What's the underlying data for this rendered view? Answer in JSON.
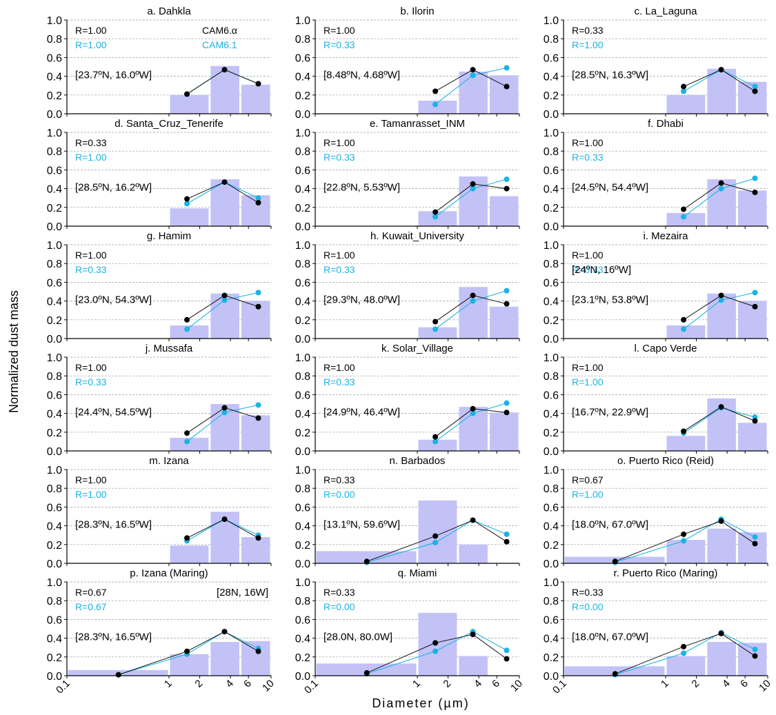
{
  "ylabel": "Normalized dust mass",
  "xlabel": "Diameter (µm)",
  "legend": {
    "black": "CAM6.α",
    "cyan": "CAM6.1"
  },
  "colors": {
    "bar": "#c3c2f7",
    "observed": "#111111",
    "cam61": "#1ab3e6"
  },
  "x_tick_labels": [
    "0.1",
    "1",
    "2",
    "4",
    "6",
    "10"
  ],
  "x_tick_values": [
    0.1,
    1,
    2,
    4,
    6,
    10
  ],
  "y_tick_labels": [
    "0.0",
    "0.2",
    "0.4",
    "0.6",
    "0.8",
    "1.0"
  ],
  "chart_data": [
    {
      "type": "bar",
      "title": "a. Dahkla",
      "xscale": "log",
      "xlim": [
        0.1,
        10
      ],
      "ylim": [
        0,
        1.0
      ],
      "r_black": "R=1.00",
      "r_cyan": "R=1.00",
      "coord": "[23.7ºN, 16.0ºW]",
      "bars": [
        {
          "x0": 1,
          "x1": 2.5,
          "value": 0.2
        },
        {
          "x0": 2.5,
          "x1": 5,
          "value": 0.51
        },
        {
          "x0": 5,
          "x1": 10,
          "value": 0.31
        }
      ],
      "series": [
        {
          "name": "CAM6.α",
          "x": [
            1.5,
            3.5,
            7.5
          ],
          "y": [
            0.21,
            0.47,
            0.32
          ]
        },
        {
          "name": "CAM6.1",
          "x": [
            1.5,
            3.5,
            7.5
          ],
          "y": [
            0.21,
            0.47,
            0.32
          ]
        }
      ]
    },
    {
      "type": "bar",
      "title": "b. Ilorin",
      "xscale": "log",
      "xlim": [
        0.1,
        10
      ],
      "ylim": [
        0,
        1.0
      ],
      "r_black": "R=1.00",
      "r_cyan": "R=0.33",
      "coord": "[8.48ºN, 4.68ºW]",
      "bars": [
        {
          "x0": 1,
          "x1": 2.5,
          "value": 0.14
        },
        {
          "x0": 2.5,
          "x1": 5,
          "value": 0.45
        },
        {
          "x0": 5,
          "x1": 10,
          "value": 0.41
        }
      ],
      "series": [
        {
          "name": "CAM6.α",
          "x": [
            1.5,
            3.5,
            7.5
          ],
          "y": [
            0.24,
            0.47,
            0.29
          ]
        },
        {
          "name": "CAM6.1",
          "x": [
            1.5,
            3.5,
            7.5
          ],
          "y": [
            0.1,
            0.41,
            0.49
          ]
        }
      ]
    },
    {
      "type": "bar",
      "title": "c. La_Laguna",
      "xscale": "log",
      "xlim": [
        0.1,
        10
      ],
      "ylim": [
        0,
        1.0
      ],
      "r_black": "R=0.33",
      "r_cyan": "R=1.00",
      "coord": "[28.5ºN, 16.3ºW]",
      "bars": [
        {
          "x0": 1,
          "x1": 2.5,
          "value": 0.2
        },
        {
          "x0": 2.5,
          "x1": 5,
          "value": 0.48
        },
        {
          "x0": 5,
          "x1": 10,
          "value": 0.34
        }
      ],
      "series": [
        {
          "name": "CAM6.α",
          "x": [
            1.5,
            3.5,
            7.5
          ],
          "y": [
            0.29,
            0.47,
            0.24
          ]
        },
        {
          "name": "CAM6.1",
          "x": [
            1.5,
            3.5,
            7.5
          ],
          "y": [
            0.24,
            0.47,
            0.29
          ]
        }
      ]
    },
    {
      "type": "bar",
      "title": "d. Santa_Cruz_Tenerife",
      "xscale": "log",
      "xlim": [
        0.1,
        10
      ],
      "ylim": [
        0,
        1.0
      ],
      "r_black": "R=0.33",
      "r_cyan": "R=1.00",
      "coord": "[28.5ºN, 16.2ºW]",
      "bars": [
        {
          "x0": 1,
          "x1": 2.5,
          "value": 0.19
        },
        {
          "x0": 2.5,
          "x1": 5,
          "value": 0.5
        },
        {
          "x0": 5,
          "x1": 10,
          "value": 0.33
        }
      ],
      "series": [
        {
          "name": "CAM6.α",
          "x": [
            1.5,
            3.5,
            7.5
          ],
          "y": [
            0.29,
            0.47,
            0.25
          ]
        },
        {
          "name": "CAM6.1",
          "x": [
            1.5,
            3.5,
            7.5
          ],
          "y": [
            0.24,
            0.47,
            0.3
          ]
        }
      ]
    },
    {
      "type": "bar",
      "title": "e. Tamanrasset_INM",
      "xscale": "log",
      "xlim": [
        0.1,
        10
      ],
      "ylim": [
        0,
        1.0
      ],
      "r_black": "R=1.00",
      "r_cyan": "R=0.33",
      "coord": "[22.8ºN, 5.53ºW]",
      "bars": [
        {
          "x0": 1,
          "x1": 2.5,
          "value": 0.16
        },
        {
          "x0": 2.5,
          "x1": 5,
          "value": 0.53
        },
        {
          "x0": 5,
          "x1": 10,
          "value": 0.32
        }
      ],
      "series": [
        {
          "name": "CAM6.α",
          "x": [
            1.5,
            3.5,
            7.5
          ],
          "y": [
            0.15,
            0.45,
            0.4
          ]
        },
        {
          "name": "CAM6.1",
          "x": [
            1.5,
            3.5,
            7.5
          ],
          "y": [
            0.1,
            0.4,
            0.5
          ]
        }
      ]
    },
    {
      "type": "bar",
      "title": "f. Dhabi",
      "xscale": "log",
      "xlim": [
        0.1,
        10
      ],
      "ylim": [
        0,
        1.0
      ],
      "r_black": "R=1.00",
      "r_cyan": "R=0.33",
      "coord": "[24.5ºN, 54.4ºW]",
      "bars": [
        {
          "x0": 1,
          "x1": 2.5,
          "value": 0.14
        },
        {
          "x0": 2.5,
          "x1": 5,
          "value": 0.5
        },
        {
          "x0": 5,
          "x1": 10,
          "value": 0.38
        }
      ],
      "series": [
        {
          "name": "CAM6.α",
          "x": [
            1.5,
            3.5,
            7.5
          ],
          "y": [
            0.18,
            0.46,
            0.36
          ]
        },
        {
          "name": "CAM6.1",
          "x": [
            1.5,
            3.5,
            7.5
          ],
          "y": [
            0.1,
            0.4,
            0.51
          ]
        }
      ]
    },
    {
      "type": "bar",
      "title": "g. Hamim",
      "xscale": "log",
      "xlim": [
        0.1,
        10
      ],
      "ylim": [
        0,
        1.0
      ],
      "r_black": "R=1.00",
      "r_cyan": "R=0.33",
      "coord": "[23.0ºN, 54.3ºW]",
      "bars": [
        {
          "x0": 1,
          "x1": 2.5,
          "value": 0.14
        },
        {
          "x0": 2.5,
          "x1": 5,
          "value": 0.48
        },
        {
          "x0": 5,
          "x1": 10,
          "value": 0.4
        }
      ],
      "series": [
        {
          "name": "CAM6.α",
          "x": [
            1.5,
            3.5,
            7.5
          ],
          "y": [
            0.2,
            0.46,
            0.34
          ]
        },
        {
          "name": "CAM6.1",
          "x": [
            1.5,
            3.5,
            7.5
          ],
          "y": [
            0.1,
            0.41,
            0.49
          ]
        }
      ]
    },
    {
      "type": "bar",
      "title": "h. Kuwait_University",
      "xscale": "log",
      "xlim": [
        0.1,
        10
      ],
      "ylim": [
        0,
        1.0
      ],
      "r_black": "R=1.00",
      "r_cyan": "R=0.33",
      "coord": "[29.3ºN, 48.0ºW]",
      "bars": [
        {
          "x0": 1,
          "x1": 2.5,
          "value": 0.12
        },
        {
          "x0": 2.5,
          "x1": 5,
          "value": 0.55
        },
        {
          "x0": 5,
          "x1": 10,
          "value": 0.34
        }
      ],
      "series": [
        {
          "name": "CAM6.α",
          "x": [
            1.5,
            3.5,
            7.5
          ],
          "y": [
            0.18,
            0.46,
            0.37
          ]
        },
        {
          "name": "CAM6.1",
          "x": [
            1.5,
            3.5,
            7.5
          ],
          "y": [
            0.1,
            0.4,
            0.51
          ]
        }
      ]
    },
    {
      "type": "bar",
      "title": "i. Mezaira",
      "xscale": "log",
      "xlim": [
        0.1,
        10
      ],
      "ylim": [
        0,
        1.0
      ],
      "r_black": "R=1.00",
      "r_cyan": "R=0.33",
      "coord": "[23.1ºN, 53.8ºW]",
      "extra": "[24ºN, 16ºW]",
      "bars": [
        {
          "x0": 1,
          "x1": 2.5,
          "value": 0.14
        },
        {
          "x0": 2.5,
          "x1": 5,
          "value": 0.48
        },
        {
          "x0": 5,
          "x1": 10,
          "value": 0.4
        }
      ],
      "series": [
        {
          "name": "CAM6.α",
          "x": [
            1.5,
            3.5,
            7.5
          ],
          "y": [
            0.2,
            0.46,
            0.34
          ]
        },
        {
          "name": "CAM6.1",
          "x": [
            1.5,
            3.5,
            7.5
          ],
          "y": [
            0.1,
            0.41,
            0.49
          ]
        }
      ]
    },
    {
      "type": "bar",
      "title": "j. Mussafa",
      "xscale": "log",
      "xlim": [
        0.1,
        10
      ],
      "ylim": [
        0,
        1.0
      ],
      "r_black": "R=1.00",
      "r_cyan": "R=0.33",
      "coord": "[24.4ºN, 54.5ºW]",
      "bars": [
        {
          "x0": 1,
          "x1": 2.5,
          "value": 0.14
        },
        {
          "x0": 2.5,
          "x1": 5,
          "value": 0.5
        },
        {
          "x0": 5,
          "x1": 10,
          "value": 0.38
        }
      ],
      "series": [
        {
          "name": "CAM6.α",
          "x": [
            1.5,
            3.5,
            7.5
          ],
          "y": [
            0.19,
            0.46,
            0.35
          ]
        },
        {
          "name": "CAM6.1",
          "x": [
            1.5,
            3.5,
            7.5
          ],
          "y": [
            0.1,
            0.41,
            0.49
          ]
        }
      ]
    },
    {
      "type": "bar",
      "title": "k. Solar_Village",
      "xscale": "log",
      "xlim": [
        0.1,
        10
      ],
      "ylim": [
        0,
        1.0
      ],
      "r_black": "R=1.00",
      "r_cyan": "R=0.33",
      "coord": "[24.9ºN, 46.4ºW]",
      "bars": [
        {
          "x0": 1,
          "x1": 2.5,
          "value": 0.12
        },
        {
          "x0": 2.5,
          "x1": 5,
          "value": 0.47
        },
        {
          "x0": 5,
          "x1": 10,
          "value": 0.41
        }
      ],
      "series": [
        {
          "name": "CAM6.α",
          "x": [
            1.5,
            3.5,
            7.5
          ],
          "y": [
            0.15,
            0.45,
            0.41
          ]
        },
        {
          "name": "CAM6.1",
          "x": [
            1.5,
            3.5,
            7.5
          ],
          "y": [
            0.1,
            0.4,
            0.51
          ]
        }
      ]
    },
    {
      "type": "bar",
      "title": "l. Capo Verde",
      "xscale": "log",
      "xlim": [
        0.1,
        10
      ],
      "ylim": [
        0,
        1.0
      ],
      "r_black": "R=1.00",
      "r_cyan": "R=1.00",
      "coord": "[16.7ºN, 22.9ºW]",
      "bars": [
        {
          "x0": 1,
          "x1": 2.5,
          "value": 0.16
        },
        {
          "x0": 2.5,
          "x1": 5,
          "value": 0.56
        },
        {
          "x0": 5,
          "x1": 10,
          "value": 0.3
        }
      ],
      "series": [
        {
          "name": "CAM6.α",
          "x": [
            1.5,
            3.5,
            7.5
          ],
          "y": [
            0.21,
            0.47,
            0.32
          ]
        },
        {
          "name": "CAM6.1",
          "x": [
            1.5,
            3.5,
            7.5
          ],
          "y": [
            0.19,
            0.46,
            0.36
          ]
        }
      ]
    },
    {
      "type": "bar",
      "title": "m. Izana",
      "xscale": "log",
      "xlim": [
        0.1,
        10
      ],
      "ylim": [
        0,
        1.0
      ],
      "r_black": "R=1.00",
      "r_cyan": "R=1.00",
      "coord": "[28.3ºN, 16.5ºW]",
      "bars": [
        {
          "x0": 1,
          "x1": 2.5,
          "value": 0.19
        },
        {
          "x0": 2.5,
          "x1": 5,
          "value": 0.55
        },
        {
          "x0": 5,
          "x1": 10,
          "value": 0.28
        }
      ],
      "series": [
        {
          "name": "CAM6.α",
          "x": [
            1.5,
            3.5,
            7.5
          ],
          "y": [
            0.27,
            0.47,
            0.27
          ]
        },
        {
          "name": "CAM6.1",
          "x": [
            1.5,
            3.5,
            7.5
          ],
          "y": [
            0.24,
            0.47,
            0.3
          ]
        }
      ]
    },
    {
      "type": "bar",
      "title": "n. Barbados",
      "xscale": "log",
      "xlim": [
        0.1,
        10
      ],
      "ylim": [
        0,
        1.0
      ],
      "r_black": "R=0.33",
      "r_cyan": "R=0.00",
      "coord": "[13.1ºN, 59.6ºW]",
      "bars": [
        {
          "x0": 0.1,
          "x1": 1,
          "value": 0.13
        },
        {
          "x0": 1,
          "x1": 2.5,
          "value": 0.67
        },
        {
          "x0": 2.5,
          "x1": 5,
          "value": 0.2
        }
      ],
      "series": [
        {
          "name": "CAM6.α",
          "x": [
            0.32,
            1.5,
            3.5,
            7.5
          ],
          "y": [
            0.02,
            0.29,
            0.46,
            0.23
          ]
        },
        {
          "name": "CAM6.1",
          "x": [
            0.32,
            1.5,
            3.5,
            7.5
          ],
          "y": [
            0.01,
            0.22,
            0.46,
            0.31
          ]
        }
      ]
    },
    {
      "type": "bar",
      "title": "o. Puerto Rico (Reid)",
      "xscale": "log",
      "xlim": [
        0.1,
        10
      ],
      "ylim": [
        0,
        1.0
      ],
      "r_black": "R=0.67",
      "r_cyan": "R=1.00",
      "coord": "[18.0ºN, 67.0ºW]",
      "bars": [
        {
          "x0": 0.1,
          "x1": 1,
          "value": 0.07
        },
        {
          "x0": 1,
          "x1": 2.5,
          "value": 0.25
        },
        {
          "x0": 2.5,
          "x1": 5,
          "value": 0.37
        },
        {
          "x0": 5,
          "x1": 10,
          "value": 0.33
        }
      ],
      "series": [
        {
          "name": "CAM6.α",
          "x": [
            0.32,
            1.5,
            3.5,
            7.5
          ],
          "y": [
            0.02,
            0.31,
            0.45,
            0.21
          ]
        },
        {
          "name": "CAM6.1",
          "x": [
            0.32,
            1.5,
            3.5,
            7.5
          ],
          "y": [
            0.01,
            0.24,
            0.47,
            0.28
          ]
        }
      ]
    },
    {
      "type": "bar",
      "title": "p. Izana (Maring)",
      "xscale": "log",
      "xlim": [
        0.1,
        10
      ],
      "ylim": [
        0,
        1.0
      ],
      "r_black": "R=0.67",
      "r_cyan": "R=0.67",
      "coord": "[28.3ºN, 16.5ºW]",
      "extra": "[28N, 16W]",
      "bars": [
        {
          "x0": 0.1,
          "x1": 1,
          "value": 0.06
        },
        {
          "x0": 1,
          "x1": 2.5,
          "value": 0.23
        },
        {
          "x0": 2.5,
          "x1": 5,
          "value": 0.36
        },
        {
          "x0": 5,
          "x1": 10,
          "value": 0.37
        }
      ],
      "series": [
        {
          "name": "CAM6.α",
          "x": [
            0.32,
            1.5,
            3.5,
            7.5
          ],
          "y": [
            0.01,
            0.26,
            0.47,
            0.26
          ]
        },
        {
          "name": "CAM6.1",
          "x": [
            0.32,
            1.5,
            3.5,
            7.5
          ],
          "y": [
            0.01,
            0.23,
            0.47,
            0.29
          ]
        }
      ]
    },
    {
      "type": "bar",
      "title": "q. Miami",
      "xscale": "log",
      "xlim": [
        0.1,
        10
      ],
      "ylim": [
        0,
        1.0
      ],
      "r_black": "R=0.33",
      "r_cyan": "R=0.00",
      "coord": "[28.0N, 80.0W]",
      "bars": [
        {
          "x0": 0.1,
          "x1": 1,
          "value": 0.13
        },
        {
          "x0": 1,
          "x1": 2.5,
          "value": 0.67
        },
        {
          "x0": 2.5,
          "x1": 5,
          "value": 0.21
        }
      ],
      "series": [
        {
          "name": "CAM6.α",
          "x": [
            0.32,
            1.5,
            3.5,
            7.5
          ],
          "y": [
            0.03,
            0.35,
            0.44,
            0.18
          ]
        },
        {
          "name": "CAM6.1",
          "x": [
            0.32,
            1.5,
            3.5,
            7.5
          ],
          "y": [
            0.02,
            0.26,
            0.47,
            0.27
          ]
        }
      ]
    },
    {
      "type": "bar",
      "title": "r. Puerto Rico (Maring)",
      "xscale": "log",
      "xlim": [
        0.1,
        10
      ],
      "ylim": [
        0,
        1.0
      ],
      "r_black": "R=0.33",
      "r_cyan": "R=0.00",
      "coord": "[18.0ºN, 67.0ºW]",
      "bars": [
        {
          "x0": 0.1,
          "x1": 1,
          "value": 0.1
        },
        {
          "x0": 1,
          "x1": 2.5,
          "value": 0.21
        },
        {
          "x0": 2.5,
          "x1": 5,
          "value": 0.36
        },
        {
          "x0": 5,
          "x1": 10,
          "value": 0.35
        }
      ],
      "series": [
        {
          "name": "CAM6.α",
          "x": [
            0.32,
            1.5,
            3.5,
            7.5
          ],
          "y": [
            0.02,
            0.31,
            0.45,
            0.21
          ]
        },
        {
          "name": "CAM6.1",
          "x": [
            0.32,
            1.5,
            3.5,
            7.5
          ],
          "y": [
            0.01,
            0.24,
            0.46,
            0.28
          ]
        }
      ]
    }
  ]
}
